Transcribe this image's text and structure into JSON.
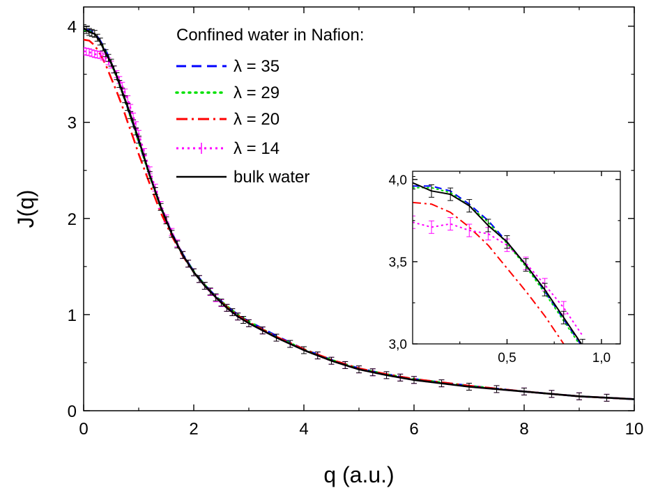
{
  "chart_data": [
    {
      "type": "line",
      "title": "",
      "xlabel": "q (a.u.)",
      "ylabel": "J(q)",
      "xlim": [
        0,
        10
      ],
      "ylim": [
        0,
        4.2
      ],
      "xticks": [
        "0",
        "2",
        "4",
        "6",
        "8",
        "10"
      ],
      "yticks": [
        "0",
        "1",
        "2",
        "3",
        "4"
      ],
      "grid": false,
      "legend_title": "Confined water in Nafion:",
      "legend_position": "top-right",
      "series": [
        {
          "name": "λ = 35",
          "color": "#0000ff",
          "dash": "14,8",
          "x": [
            0,
            0.1,
            0.2,
            0.3,
            0.4,
            0.5,
            0.6,
            0.7,
            0.8,
            0.9,
            1.0,
            1.2,
            1.4,
            1.6,
            1.8,
            2.0,
            2.2,
            2.4,
            2.6,
            2.8,
            3.0,
            3.5,
            4.0,
            4.5,
            5.0,
            5.5,
            6.0,
            7.0,
            8.0,
            9.0,
            10.0
          ],
          "y": [
            3.96,
            3.96,
            3.93,
            3.85,
            3.75,
            3.62,
            3.48,
            3.32,
            3.15,
            2.98,
            2.8,
            2.45,
            2.12,
            1.85,
            1.63,
            1.45,
            1.31,
            1.19,
            1.09,
            1.0,
            0.93,
            0.78,
            0.64,
            0.53,
            0.44,
            0.38,
            0.33,
            0.26,
            0.2,
            0.15,
            0.12
          ]
        },
        {
          "name": "λ = 29",
          "color": "#00e000",
          "dash": "2,7",
          "x": [
            0,
            0.1,
            0.2,
            0.3,
            0.4,
            0.5,
            0.6,
            0.7,
            0.8,
            0.9,
            1.0,
            1.2,
            1.4,
            1.6,
            1.8,
            2.0,
            2.2,
            2.4,
            2.6,
            2.8,
            3.0,
            3.5,
            4.0,
            4.5,
            5.0,
            5.5,
            6.0,
            7.0,
            8.0,
            9.0,
            10.0
          ],
          "y": [
            3.95,
            3.95,
            3.92,
            3.84,
            3.74,
            3.61,
            3.47,
            3.31,
            3.14,
            2.97,
            2.79,
            2.44,
            2.11,
            1.84,
            1.62,
            1.45,
            1.31,
            1.19,
            1.09,
            1.0,
            0.93,
            0.77,
            0.64,
            0.53,
            0.44,
            0.38,
            0.33,
            0.26,
            0.2,
            0.15,
            0.12
          ]
        },
        {
          "name": "λ = 20",
          "color": "#ff0000",
          "dash": "16,6,3,6",
          "x": [
            0,
            0.1,
            0.2,
            0.3,
            0.4,
            0.5,
            0.6,
            0.7,
            0.8,
            0.9,
            1.0,
            1.2,
            1.4,
            1.6,
            1.8,
            2.0,
            2.2,
            2.4,
            2.6,
            2.8,
            3.0,
            3.5,
            4.0,
            4.5,
            5.0,
            5.5,
            6.0,
            7.0,
            8.0,
            9.0,
            10.0
          ],
          "y": [
            3.86,
            3.85,
            3.8,
            3.71,
            3.6,
            3.46,
            3.32,
            3.17,
            3.0,
            2.84,
            2.67,
            2.36,
            2.06,
            1.82,
            1.61,
            1.44,
            1.3,
            1.18,
            1.08,
            0.99,
            0.92,
            0.77,
            0.64,
            0.53,
            0.44,
            0.38,
            0.33,
            0.26,
            0.2,
            0.15,
            0.12
          ]
        },
        {
          "name": "λ = 14",
          "color": "#ff00ff",
          "dash": "3,5",
          "error_bars": true,
          "x": [
            0,
            0.1,
            0.2,
            0.3,
            0.4,
            0.5,
            0.6,
            0.7,
            0.8,
            0.9,
            1.0,
            1.2,
            1.4,
            1.6,
            1.8,
            2.0,
            2.2,
            2.4,
            2.6,
            2.8,
            3.0,
            3.5,
            4.0,
            4.5,
            5.0,
            5.5,
            6.0,
            7.0,
            8.0,
            9.0,
            10.0
          ],
          "y": [
            3.74,
            3.73,
            3.71,
            3.7,
            3.67,
            3.6,
            3.5,
            3.38,
            3.24,
            3.06,
            2.88,
            2.5,
            2.14,
            1.86,
            1.62,
            1.44,
            1.3,
            1.17,
            1.07,
            0.98,
            0.91,
            0.76,
            0.63,
            0.52,
            0.43,
            0.37,
            0.32,
            0.25,
            0.2,
            0.15,
            0.12
          ]
        },
        {
          "name": "bulk water",
          "color": "#000000",
          "dash": "",
          "error_bars": true,
          "x": [
            0,
            0.1,
            0.2,
            0.3,
            0.4,
            0.5,
            0.6,
            0.7,
            0.8,
            0.9,
            1.0,
            1.2,
            1.4,
            1.6,
            1.8,
            2.0,
            2.2,
            2.4,
            2.6,
            2.8,
            3.0,
            3.5,
            4.0,
            4.5,
            5.0,
            5.5,
            6.0,
            7.0,
            8.0,
            9.0,
            10.0
          ],
          "y": [
            3.98,
            3.94,
            3.92,
            3.84,
            3.72,
            3.62,
            3.48,
            3.32,
            3.16,
            2.99,
            2.82,
            2.45,
            2.12,
            1.84,
            1.62,
            1.44,
            1.3,
            1.18,
            1.07,
            0.98,
            0.91,
            0.76,
            0.63,
            0.52,
            0.43,
            0.37,
            0.32,
            0.25,
            0.2,
            0.15,
            0.12
          ]
        }
      ]
    },
    {
      "type": "line",
      "title": "",
      "xlabel": "",
      "ylabel": "",
      "xlim": [
        0,
        1.1
      ],
      "ylim": [
        3.0,
        4.05
      ],
      "xticks": [
        "0,5",
        "1,0"
      ],
      "yticks": [
        "3,0",
        "3,5",
        "4,0"
      ],
      "grid": false,
      "series": [
        {
          "name": "λ = 35",
          "color": "#0000ff",
          "dash": "10,6",
          "x": [
            0,
            0.1,
            0.2,
            0.3,
            0.4,
            0.5,
            0.6,
            0.7,
            0.8,
            0.9,
            0.93
          ],
          "y": [
            3.96,
            3.96,
            3.93,
            3.85,
            3.75,
            3.62,
            3.48,
            3.32,
            3.15,
            2.98,
            2.93
          ]
        },
        {
          "name": "λ = 29",
          "color": "#00e000",
          "dash": "2,5",
          "x": [
            0,
            0.1,
            0.2,
            0.3,
            0.4,
            0.5,
            0.6,
            0.7,
            0.8,
            0.9,
            0.93
          ],
          "y": [
            3.95,
            3.95,
            3.92,
            3.84,
            3.74,
            3.61,
            3.47,
            3.31,
            3.14,
            2.97,
            2.92
          ]
        },
        {
          "name": "λ = 20",
          "color": "#ff0000",
          "dash": "12,5,3,5",
          "x": [
            0,
            0.1,
            0.2,
            0.3,
            0.4,
            0.5,
            0.6,
            0.7,
            0.8,
            0.9
          ],
          "y": [
            3.86,
            3.85,
            3.8,
            3.71,
            3.6,
            3.46,
            3.32,
            3.17,
            3.0,
            2.84
          ]
        },
        {
          "name": "λ = 14",
          "color": "#ff00ff",
          "dash": "3,4",
          "error_bars": true,
          "x": [
            0,
            0.1,
            0.2,
            0.3,
            0.4,
            0.5,
            0.6,
            0.7,
            0.8,
            0.9
          ],
          "y": [
            3.74,
            3.71,
            3.73,
            3.69,
            3.67,
            3.6,
            3.49,
            3.36,
            3.22,
            3.05
          ]
        },
        {
          "name": "bulk water",
          "color": "#000000",
          "dash": "",
          "error_bars": true,
          "x": [
            0,
            0.1,
            0.2,
            0.3,
            0.4,
            0.5,
            0.6,
            0.7,
            0.8,
            0.9,
            0.95
          ],
          "y": [
            3.98,
            3.93,
            3.91,
            3.84,
            3.72,
            3.62,
            3.48,
            3.33,
            3.16,
            2.99,
            2.92
          ]
        }
      ]
    }
  ]
}
